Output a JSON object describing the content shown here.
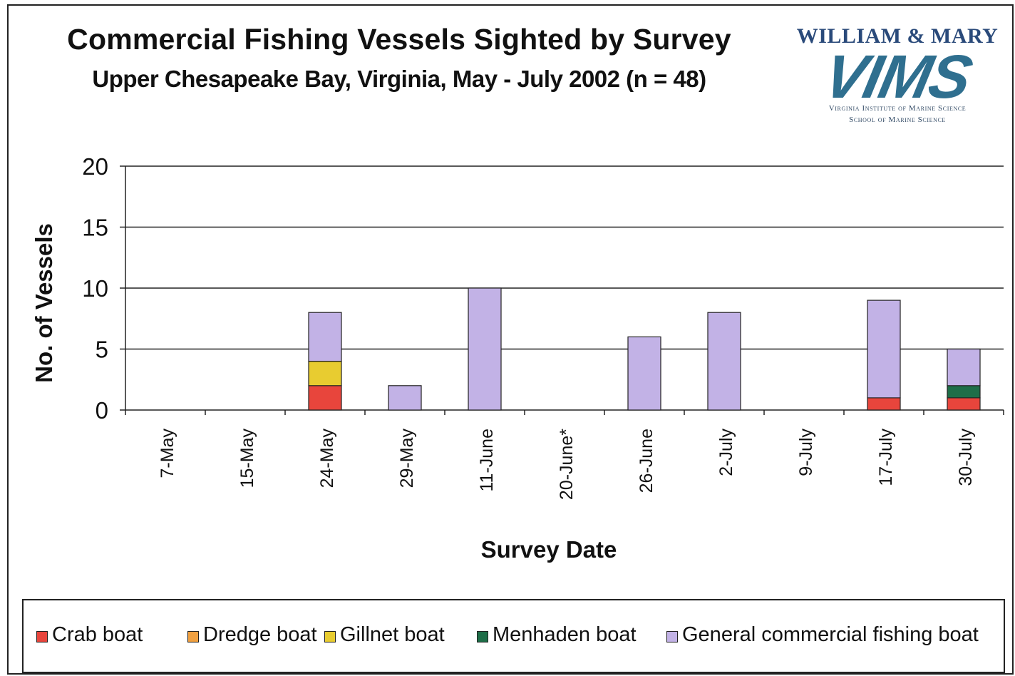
{
  "chart_data": {
    "type": "bar",
    "stacked": true,
    "title": "Commercial Fishing Vessels Sighted by Survey",
    "subtitle": "Upper Chesapeake Bay, Virginia, May - July 2002 (n = 48)",
    "xlabel": "Survey Date",
    "ylabel": "No. of Vessels",
    "ylim": [
      0,
      20
    ],
    "yticks": [
      "0",
      "5",
      "10",
      "15",
      "20"
    ],
    "grid": true,
    "legend": "bottom",
    "categories": [
      "7-May",
      "15-May",
      "24-May",
      "29-May",
      "11-June",
      "20-June*",
      "26-June",
      "2-July",
      "9-July",
      "17-July",
      "30-July"
    ],
    "series": [
      {
        "name": "Crab boat",
        "color": "#e8453c",
        "values": [
          0,
          0,
          2,
          0,
          0,
          0,
          0,
          0,
          0,
          1,
          1
        ]
      },
      {
        "name": "Dredge boat",
        "color": "#f0a040",
        "values": [
          0,
          0,
          0,
          0,
          0,
          0,
          0,
          0,
          0,
          0,
          0
        ]
      },
      {
        "name": "Gillnet boat",
        "color": "#e8cc30",
        "values": [
          0,
          0,
          2,
          0,
          0,
          0,
          0,
          0,
          0,
          0,
          0
        ]
      },
      {
        "name": "Menhaden boat",
        "color": "#1e6e48",
        "values": [
          0,
          0,
          0,
          0,
          0,
          0,
          0,
          0,
          0,
          0,
          1
        ]
      },
      {
        "name": "General commercial fishing boat",
        "color": "#c2b2e6",
        "values": [
          0,
          0,
          4,
          2,
          10,
          0,
          6,
          8,
          0,
          8,
          3
        ]
      }
    ]
  },
  "logo": {
    "top": "WILLIAM & MARY",
    "mark": "VIMS",
    "line1": "Virginia Institute of Marine Science",
    "line2": "School of Marine Science"
  }
}
